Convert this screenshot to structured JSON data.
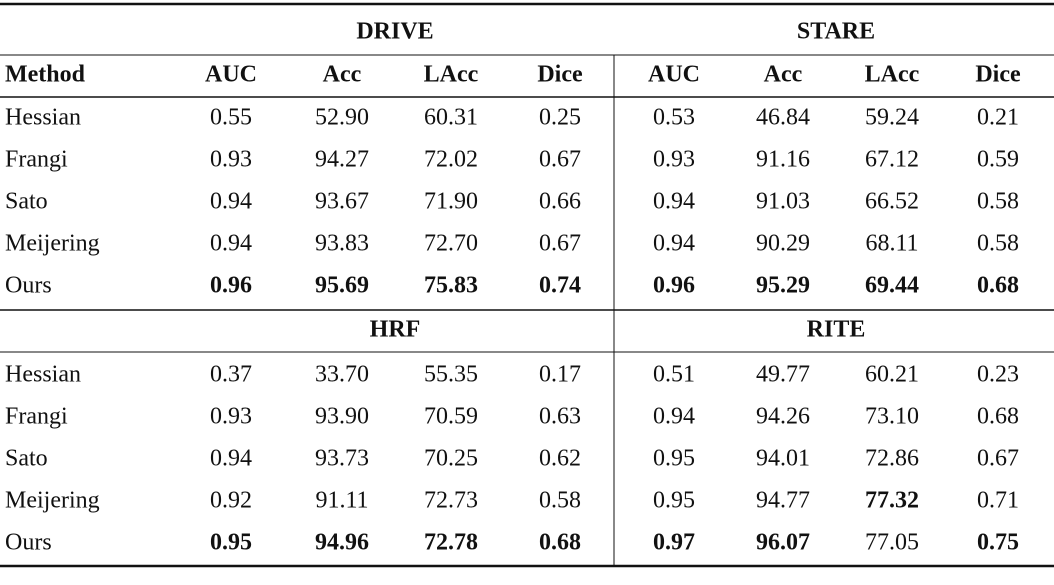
{
  "table": {
    "columns": [
      "Method",
      "AUC",
      "Acc",
      "LAcc",
      "Dice",
      "AUC",
      "Acc",
      "LAcc",
      "Dice"
    ],
    "blocks": [
      {
        "datasets": [
          "DRIVE",
          "STARE"
        ],
        "rows": [
          [
            "Hessian",
            "0.55",
            "52.90",
            "60.31",
            "0.25",
            "0.53",
            "46.84",
            "59.24",
            "0.21"
          ],
          [
            "Frangi",
            "0.93",
            "94.27",
            "72.02",
            "0.67",
            "0.93",
            "91.16",
            "67.12",
            "0.59"
          ],
          [
            "Sato",
            "0.94",
            "93.67",
            "71.90",
            "0.66",
            "0.94",
            "91.03",
            "66.52",
            "0.58"
          ],
          [
            "Meijering",
            "0.94",
            "93.83",
            "72.70",
            "0.67",
            "0.94",
            "90.29",
            "68.11",
            "0.58"
          ],
          [
            "Ours",
            "0.96",
            "95.69",
            "75.83",
            "0.74",
            "0.96",
            "95.29",
            "69.44",
            "0.68"
          ]
        ],
        "bold": [
          [
            4,
            1
          ],
          [
            4,
            2
          ],
          [
            4,
            3
          ],
          [
            4,
            4
          ],
          [
            4,
            5
          ],
          [
            4,
            6
          ],
          [
            4,
            7
          ],
          [
            4,
            8
          ]
        ]
      },
      {
        "datasets": [
          "HRF",
          "RITE"
        ],
        "rows": [
          [
            "Hessian",
            "0.37",
            "33.70",
            "55.35",
            "0.17",
            "0.51",
            "49.77",
            "60.21",
            "0.23"
          ],
          [
            "Frangi",
            "0.93",
            "93.90",
            "70.59",
            "0.63",
            "0.94",
            "94.26",
            "73.10",
            "0.68"
          ],
          [
            "Sato",
            "0.94",
            "93.73",
            "70.25",
            "0.62",
            "0.95",
            "94.01",
            "72.86",
            "0.67"
          ],
          [
            "Meijering",
            "0.92",
            "91.11",
            "72.73",
            "0.58",
            "0.95",
            "94.77",
            "77.32",
            "0.71"
          ],
          [
            "Ours",
            "0.95",
            "94.96",
            "72.78",
            "0.68",
            "0.97",
            "96.07",
            "77.05",
            "0.75"
          ]
        ],
        "bold": [
          [
            4,
            1
          ],
          [
            4,
            2
          ],
          [
            4,
            3
          ],
          [
            4,
            4
          ],
          [
            4,
            5
          ],
          [
            4,
            6
          ],
          [
            4,
            8
          ],
          [
            3,
            7
          ]
        ]
      }
    ]
  }
}
